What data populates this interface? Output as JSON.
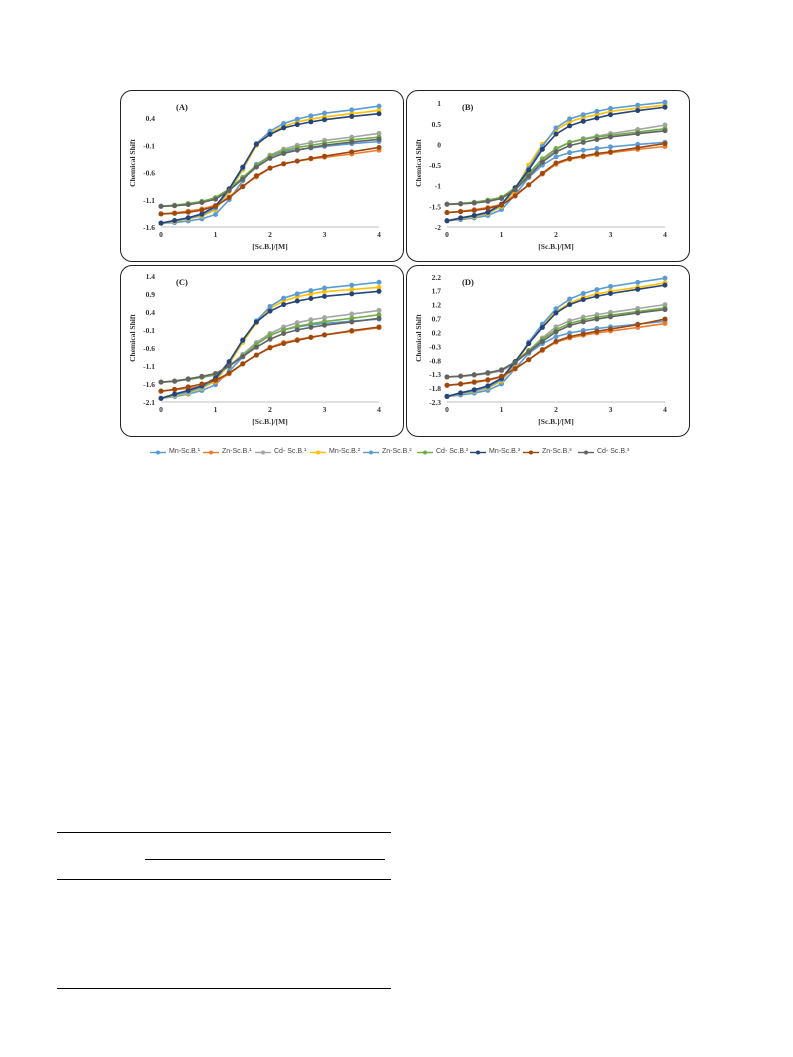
{
  "chart_data": [
    {
      "type": "line",
      "panel_label": "(A)",
      "xlabel": "[Sc.B.]/[M]",
      "ylabel": "Chemical Shift",
      "x": [
        0,
        0.25,
        0.5,
        0.75,
        1.0,
        1.25,
        1.5,
        1.75,
        2.0,
        2.25,
        2.5,
        2.75,
        3.0,
        3.5,
        4.0
      ],
      "xlim": [
        0,
        4
      ],
      "xticks": [
        "0",
        "1",
        "2",
        "3",
        "4"
      ],
      "ylim": [
        -1.6,
        0.75
      ],
      "yticks": [
        -1.6,
        -1.1,
        -0.6,
        -0.1,
        0.4
      ],
      "ytick_labels": [
        "-1.6",
        "-1.1",
        "-0.6",
        "-0.1",
        "0.4"
      ],
      "series": [
        {
          "name": "Mn-Sc.B.¹",
          "color": "#5b9bd5",
          "values": [
            -1.53,
            -1.52,
            -1.49,
            -1.45,
            -1.37,
            -1.1,
            -0.75,
            -0.45,
            -0.3,
            -0.22,
            -0.18,
            -0.15,
            -0.12,
            -0.07,
            -0.03
          ]
        },
        {
          "name": "Zn-Sc.B.¹",
          "color": "#ed7d31",
          "values": [
            -1.36,
            -1.34,
            -1.31,
            -1.27,
            -1.2,
            -1.05,
            -0.85,
            -0.68,
            -0.52,
            -0.44,
            -0.39,
            -0.35,
            -0.32,
            -0.26,
            -0.19
          ]
        },
        {
          "name": "Cd- Sc.B.¹",
          "color": "#a5a5a5",
          "values": [
            -1.22,
            -1.21,
            -1.18,
            -1.14,
            -1.08,
            -0.92,
            -0.7,
            -0.48,
            -0.28,
            -0.17,
            -0.1,
            -0.05,
            -0.01,
            0.05,
            0.12
          ]
        },
        {
          "name": "Mn-Sc.B.²",
          "color": "#ffc000",
          "values": [
            -1.53,
            -1.5,
            -1.45,
            -1.4,
            -1.28,
            -0.95,
            -0.55,
            -0.1,
            0.12,
            0.25,
            0.33,
            0.38,
            0.42,
            0.48,
            0.54
          ]
        },
        {
          "name": "Zn-Sc.B.²",
          "color": "#5b9bd5",
          "values": [
            -1.53,
            -1.49,
            -1.44,
            -1.38,
            -1.25,
            -0.92,
            -0.52,
            -0.07,
            0.16,
            0.3,
            0.38,
            0.44,
            0.49,
            0.55,
            0.62
          ]
        },
        {
          "name": "Cd- Sc.B.²",
          "color": "#70ad47",
          "values": [
            -1.22,
            -1.2,
            -1.17,
            -1.13,
            -1.06,
            -0.9,
            -0.69,
            -0.47,
            -0.3,
            -0.2,
            -0.14,
            -0.1,
            -0.06,
            0.0,
            0.05
          ]
        },
        {
          "name": "Mn-Sc.B.³",
          "color": "#264478",
          "values": [
            -1.53,
            -1.48,
            -1.43,
            -1.36,
            -1.22,
            -0.9,
            -0.5,
            -0.08,
            0.1,
            0.22,
            0.28,
            0.33,
            0.37,
            0.43,
            0.48
          ]
        },
        {
          "name": "Zn-Sc.B.³",
          "color": "#9e480e",
          "values": [
            -1.36,
            -1.35,
            -1.33,
            -1.29,
            -1.22,
            -1.06,
            -0.86,
            -0.66,
            -0.52,
            -0.44,
            -0.39,
            -0.34,
            -0.3,
            -0.22,
            -0.14
          ]
        },
        {
          "name": "Cd- Sc.B.³",
          "color": "#636363",
          "values": [
            -1.22,
            -1.21,
            -1.19,
            -1.15,
            -1.09,
            -0.93,
            -0.72,
            -0.5,
            -0.34,
            -0.25,
            -0.19,
            -0.14,
            -0.1,
            -0.04,
            0.01
          ]
        }
      ]
    },
    {
      "type": "line",
      "panel_label": "(B)",
      "xlabel": "[Sc.B.]/[M]",
      "ylabel": "Chemical Shift",
      "x": [
        0,
        0.25,
        0.5,
        0.75,
        1.0,
        1.25,
        1.5,
        1.75,
        2.0,
        2.25,
        2.5,
        2.75,
        3.0,
        3.5,
        4.0
      ],
      "xlim": [
        0,
        4
      ],
      "xticks": [
        "0",
        "1",
        "2",
        "3",
        "4"
      ],
      "ylim": [
        -2,
        1.1
      ],
      "yticks": [
        -2,
        -1.5,
        -1,
        -0.5,
        0,
        0.5,
        1
      ],
      "ytick_labels": [
        "-2",
        "-1.5",
        "-1",
        "-0.5",
        "0",
        "0.5",
        "1"
      ],
      "series": [
        {
          "name": "Mn-Sc.B.¹",
          "color": "#5b9bd5",
          "values": [
            -1.85,
            -1.82,
            -1.78,
            -1.72,
            -1.58,
            -1.22,
            -0.8,
            -0.5,
            -0.3,
            -0.2,
            -0.14,
            -0.1,
            -0.06,
            0.0,
            0.05
          ]
        },
        {
          "name": "Zn-Sc.B.¹",
          "color": "#ed7d31",
          "values": [
            -1.65,
            -1.62,
            -1.58,
            -1.53,
            -1.45,
            -1.22,
            -0.98,
            -0.72,
            -0.48,
            -0.36,
            -0.3,
            -0.25,
            -0.2,
            -0.12,
            -0.05
          ]
        },
        {
          "name": "Cd- Sc.B.¹",
          "color": "#a5a5a5",
          "values": [
            -1.45,
            -1.44,
            -1.41,
            -1.37,
            -1.3,
            -1.08,
            -0.75,
            -0.4,
            -0.12,
            0.05,
            0.14,
            0.2,
            0.26,
            0.36,
            0.47
          ]
        },
        {
          "name": "Mn-Sc.B.²",
          "color": "#ffc000",
          "values": [
            -1.85,
            -1.8,
            -1.75,
            -1.68,
            -1.5,
            -1.1,
            -0.5,
            0.0,
            0.35,
            0.55,
            0.65,
            0.72,
            0.8,
            0.88,
            0.95
          ]
        },
        {
          "name": "Zn-Sc.B.²",
          "color": "#5b9bd5",
          "values": [
            -1.85,
            -1.79,
            -1.73,
            -1.66,
            -1.47,
            -1.06,
            -0.58,
            -0.05,
            0.4,
            0.62,
            0.72,
            0.8,
            0.87,
            0.95,
            1.02
          ]
        },
        {
          "name": "Cd- Sc.B.²",
          "color": "#70ad47",
          "values": [
            -1.45,
            -1.43,
            -1.4,
            -1.35,
            -1.28,
            -1.05,
            -0.7,
            -0.35,
            -0.1,
            0.05,
            0.12,
            0.18,
            0.22,
            0.3,
            0.38
          ]
        },
        {
          "name": "Mn-Sc.B.³",
          "color": "#264478",
          "values": [
            -1.85,
            -1.78,
            -1.72,
            -1.64,
            -1.45,
            -1.05,
            -0.62,
            -0.12,
            0.25,
            0.45,
            0.56,
            0.64,
            0.72,
            0.82,
            0.9
          ]
        },
        {
          "name": "Zn-Sc.B.³",
          "color": "#9e480e",
          "values": [
            -1.65,
            -1.63,
            -1.6,
            -1.55,
            -1.47,
            -1.25,
            -0.98,
            -0.7,
            -0.45,
            -0.34,
            -0.28,
            -0.22,
            -0.18,
            -0.08,
            0.02
          ]
        },
        {
          "name": "Cd- Sc.B.³",
          "color": "#636363",
          "values": [
            -1.45,
            -1.44,
            -1.42,
            -1.38,
            -1.31,
            -1.1,
            -0.77,
            -0.43,
            -0.18,
            -0.03,
            0.05,
            0.12,
            0.18,
            0.26,
            0.33
          ]
        }
      ]
    },
    {
      "type": "line",
      "panel_label": "(C)",
      "xlabel": "[Sc.B.]/[M]",
      "ylabel": "Chemical Shift",
      "x": [
        0,
        0.25,
        0.5,
        0.75,
        1.0,
        1.25,
        1.5,
        1.75,
        2.0,
        2.25,
        2.5,
        2.75,
        3.0,
        3.5,
        4.0
      ],
      "xlim": [
        0,
        4
      ],
      "xticks": [
        "0",
        "1",
        "2",
        "3",
        "4"
      ],
      "ylim": [
        -2.1,
        1.45
      ],
      "yticks": [
        -2.1,
        -1.6,
        -1.1,
        -0.6,
        -0.1,
        0.4,
        0.9,
        1.4
      ],
      "ytick_labels": [
        "-2.1",
        "-1.6",
        "-1.1",
        "-0.6",
        "-0.1",
        "0.4",
        "0.9",
        "1.4"
      ],
      "series": [
        {
          "name": "Mn-Sc.B.¹",
          "color": "#5b9bd5",
          "values": [
            -2.0,
            -1.95,
            -1.88,
            -1.78,
            -1.62,
            -1.25,
            -0.85,
            -0.5,
            -0.25,
            -0.1,
            -0.02,
            0.04,
            0.08,
            0.14,
            0.2
          ]
        },
        {
          "name": "Zn-Sc.B.¹",
          "color": "#ed7d31",
          "values": [
            -1.8,
            -1.76,
            -1.72,
            -1.66,
            -1.55,
            -1.32,
            -1.05,
            -0.8,
            -0.58,
            -0.45,
            -0.37,
            -0.3,
            -0.24,
            -0.14,
            -0.04
          ]
        },
        {
          "name": "Cd- Sc.B.¹",
          "color": "#a5a5a5",
          "values": [
            -1.55,
            -1.53,
            -1.48,
            -1.42,
            -1.35,
            -1.1,
            -0.78,
            -0.45,
            -0.2,
            -0.02,
            0.1,
            0.18,
            0.24,
            0.34,
            0.44
          ]
        },
        {
          "name": "Mn-Sc.B.²",
          "color": "#ffc000",
          "values": [
            -2.0,
            -1.92,
            -1.85,
            -1.72,
            -1.52,
            -1.05,
            -0.45,
            0.1,
            0.5,
            0.7,
            0.82,
            0.9,
            0.96,
            1.02,
            1.08
          ]
        },
        {
          "name": "Zn-Sc.B.²",
          "color": "#5b9bd5",
          "values": [
            -2.0,
            -1.9,
            -1.82,
            -1.69,
            -1.48,
            -1.0,
            -0.4,
            0.15,
            0.55,
            0.78,
            0.9,
            0.99,
            1.06,
            1.14,
            1.22
          ]
        },
        {
          "name": "Cd- Sc.B.²",
          "color": "#70ad47",
          "values": [
            -1.55,
            -1.52,
            -1.47,
            -1.41,
            -1.34,
            -1.12,
            -0.82,
            -0.5,
            -0.25,
            -0.1,
            0.0,
            0.07,
            0.13,
            0.22,
            0.32
          ]
        },
        {
          "name": "Mn-Sc.B.³",
          "color": "#264478",
          "values": [
            -2.0,
            -1.88,
            -1.78,
            -1.65,
            -1.44,
            -0.98,
            -0.38,
            0.12,
            0.42,
            0.6,
            0.7,
            0.77,
            0.83,
            0.9,
            0.97
          ]
        },
        {
          "name": "Zn-Sc.B.³",
          "color": "#9e480e",
          "values": [
            -1.8,
            -1.75,
            -1.68,
            -1.6,
            -1.5,
            -1.3,
            -1.04,
            -0.8,
            -0.6,
            -0.48,
            -0.39,
            -0.31,
            -0.24,
            -0.12,
            -0.02
          ]
        },
        {
          "name": "Cd- Sc.B.³",
          "color": "#636363",
          "values": [
            -1.55,
            -1.52,
            -1.46,
            -1.39,
            -1.31,
            -1.1,
            -0.84,
            -0.58,
            -0.36,
            -0.2,
            -0.1,
            -0.03,
            0.03,
            0.12,
            0.22
          ]
        }
      ]
    },
    {
      "type": "line",
      "panel_label": "(D)",
      "xlabel": "[Sc.B.]/[M]",
      "ylabel": "Chemical Shift",
      "x": [
        0,
        0.25,
        0.5,
        0.75,
        1.0,
        1.25,
        1.5,
        1.75,
        2.0,
        2.25,
        2.5,
        2.75,
        3.0,
        3.5,
        4.0
      ],
      "xlim": [
        0,
        4
      ],
      "xticks": [
        "0",
        "1",
        "2",
        "3",
        "4"
      ],
      "ylim": [
        -2.3,
        2.3
      ],
      "yticks": [
        -2.3,
        -1.8,
        -1.3,
        -0.8,
        -0.3,
        0.2,
        0.7,
        1.2,
        1.7,
        2.2
      ],
      "ytick_labels": [
        "-2.3",
        "-1.8",
        "-1.3",
        "-0.8",
        "-0.3",
        "0.2",
        "0.7",
        "1.2",
        "1.7",
        "2.2"
      ],
      "series": [
        {
          "name": "Mn-Sc.B.¹",
          "color": "#5b9bd5",
          "values": [
            -2.1,
            -2.05,
            -1.98,
            -1.88,
            -1.65,
            -1.1,
            -0.55,
            -0.2,
            0.05,
            0.18,
            0.27,
            0.34,
            0.4,
            0.5,
            0.6
          ]
        },
        {
          "name": "Zn-Sc.B.¹",
          "color": "#ed7d31",
          "values": [
            -1.7,
            -1.66,
            -1.6,
            -1.52,
            -1.4,
            -1.12,
            -0.78,
            -0.45,
            -0.15,
            0.0,
            0.1,
            0.18,
            0.25,
            0.38,
            0.52
          ]
        },
        {
          "name": "Cd- Sc.B.¹",
          "color": "#a5a5a5",
          "values": [
            -1.4,
            -1.38,
            -1.34,
            -1.28,
            -1.18,
            -0.9,
            -0.45,
            0.0,
            0.4,
            0.62,
            0.75,
            0.84,
            0.92,
            1.06,
            1.2
          ]
        },
        {
          "name": "Mn-Sc.B.²",
          "color": "#ffc000",
          "values": [
            -2.1,
            -2.0,
            -1.92,
            -1.8,
            -1.55,
            -0.95,
            -0.2,
            0.45,
            0.95,
            1.25,
            1.45,
            1.58,
            1.68,
            1.82,
            1.98
          ]
        },
        {
          "name": "Zn-Sc.B.²",
          "color": "#5b9bd5",
          "values": [
            -2.1,
            -1.99,
            -1.9,
            -1.77,
            -1.5,
            -0.9,
            -0.15,
            0.5,
            1.05,
            1.4,
            1.6,
            1.74,
            1.85,
            2.0,
            2.15
          ]
        },
        {
          "name": "Cd- Sc.B.²",
          "color": "#70ad47",
          "values": [
            -1.4,
            -1.37,
            -1.32,
            -1.25,
            -1.14,
            -0.85,
            -0.45,
            -0.05,
            0.3,
            0.52,
            0.65,
            0.75,
            0.82,
            0.95,
            1.08
          ]
        },
        {
          "name": "Mn-Sc.B.³",
          "color": "#264478",
          "values": [
            -2.1,
            -1.97,
            -1.86,
            -1.72,
            -1.45,
            -0.85,
            -0.2,
            0.38,
            0.9,
            1.2,
            1.38,
            1.5,
            1.6,
            1.75,
            1.9
          ]
        },
        {
          "name": "Zn-Sc.B.³",
          "color": "#9e480e",
          "values": [
            -1.7,
            -1.65,
            -1.58,
            -1.5,
            -1.38,
            -1.1,
            -0.78,
            -0.42,
            -0.12,
            0.05,
            0.15,
            0.24,
            0.32,
            0.48,
            0.68
          ]
        },
        {
          "name": "Cd- Sc.B.³",
          "color": "#636363",
          "values": [
            -1.4,
            -1.37,
            -1.32,
            -1.25,
            -1.15,
            -0.88,
            -0.5,
            -0.12,
            0.22,
            0.45,
            0.58,
            0.68,
            0.76,
            0.9,
            1.02
          ]
        }
      ]
    }
  ],
  "legend": [
    {
      "name": "Mn-Sc.B.¹",
      "color": "#5b9bd5"
    },
    {
      "name": "Zn-Sc.B.¹",
      "color": "#ed7d31"
    },
    {
      "name": "Cd- Sc.B.¹",
      "color": "#a5a5a5"
    },
    {
      "name": "Mn-Sc.B.²",
      "color": "#ffc000"
    },
    {
      "name": "Zn-Sc.B.²",
      "color": "#5b9bd5"
    },
    {
      "name": "Cd- Sc.B.²",
      "color": "#70ad47"
    },
    {
      "name": "Mn-Sc.B.³",
      "color": "#264478"
    },
    {
      "name": "Zn-Sc.B.³",
      "color": "#9e480e"
    },
    {
      "name": "Cd- Sc.B.³",
      "color": "#636363"
    }
  ],
  "legend_placement": "bottom",
  "grid": false
}
